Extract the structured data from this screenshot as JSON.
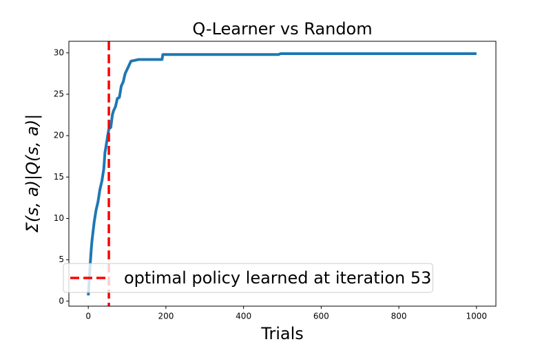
{
  "chart_data": {
    "type": "line",
    "title": "Q-Learner vs Random",
    "xlabel": "Trials",
    "ylabel": "Σ(s, a)|Q(s, a)|",
    "x": [
      0,
      3,
      5,
      8,
      10,
      15,
      20,
      25,
      30,
      35,
      40,
      43,
      45,
      50,
      53,
      58,
      62,
      65,
      70,
      75,
      80,
      85,
      90,
      95,
      100,
      105,
      110,
      120,
      130,
      150,
      190,
      192,
      200,
      300,
      490,
      495,
      600,
      800,
      1000
    ],
    "series": [
      {
        "name": "Q-Learner",
        "color": "#1f77b4",
        "values": [
          0.7,
          3,
          4.5,
          6.5,
          7.5,
          9.5,
          11,
          12,
          13.5,
          14.5,
          16,
          18,
          18.5,
          20,
          20.8,
          21,
          22.5,
          23,
          23.5,
          24.5,
          24.6,
          26,
          26.5,
          27.5,
          28,
          28.5,
          29,
          29.1,
          29.2,
          29.2,
          29.2,
          29.8,
          29.8,
          29.8,
          29.8,
          29.9,
          29.9,
          29.9,
          29.9
        ]
      }
    ],
    "vline": {
      "x": 53,
      "color": "#ff0000",
      "label": "optimal policy learned at iteration 53"
    },
    "legend": "lower left",
    "xlim": [
      -50,
      1050
    ],
    "ylim": [
      -0.6,
      31.4
    ],
    "xticks": [
      0,
      200,
      400,
      600,
      800,
      1000
    ],
    "yticks": [
      0,
      5,
      10,
      15,
      20,
      25,
      30
    ],
    "grid": false
  }
}
